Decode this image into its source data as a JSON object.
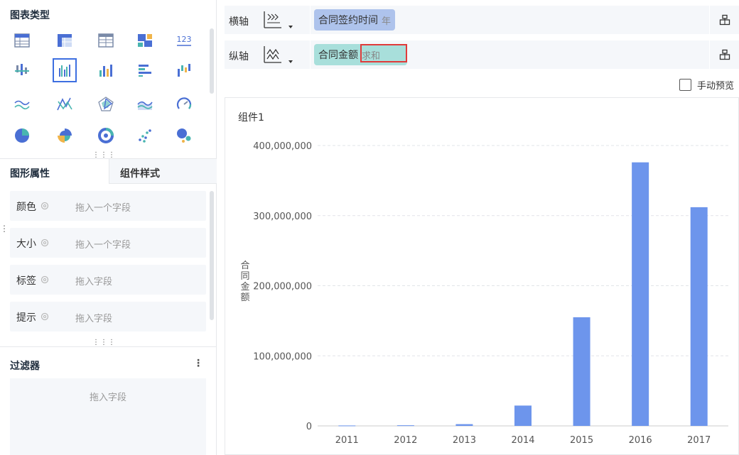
{
  "left": {
    "chart_types_title": "图表类型",
    "chart_types": [
      {
        "icon": "table-icon",
        "selected": false
      },
      {
        "icon": "cross-table-icon",
        "selected": false
      },
      {
        "icon": "detail-table-icon",
        "selected": false
      },
      {
        "icon": "kpi-block-icon",
        "selected": false
      },
      {
        "icon": "number-card-icon",
        "text": "123",
        "selected": false
      },
      {
        "icon": "floating-bar-icon",
        "selected": false
      },
      {
        "icon": "grouped-bar-icon",
        "selected": true
      },
      {
        "icon": "bar-chart-icon",
        "selected": false
      },
      {
        "icon": "horizontal-bar-icon",
        "selected": false
      },
      {
        "icon": "waterfall-icon",
        "selected": false
      },
      {
        "icon": "line-chart-icon",
        "selected": false
      },
      {
        "icon": "polyline-icon",
        "selected": false
      },
      {
        "icon": "radar-icon",
        "selected": false
      },
      {
        "icon": "area-chart-icon",
        "selected": false
      },
      {
        "icon": "gauge-icon",
        "selected": false
      },
      {
        "icon": "pie-chart-icon",
        "selected": false
      },
      {
        "icon": "rose-chart-icon",
        "selected": false
      },
      {
        "icon": "donut-chart-icon",
        "selected": false
      },
      {
        "icon": "scatter-icon",
        "selected": false
      },
      {
        "icon": "bubble-icon",
        "selected": false
      }
    ],
    "tabs": [
      {
        "label": "图形属性",
        "active": true
      },
      {
        "label": "组件样式",
        "active": false
      }
    ],
    "properties": [
      {
        "label": "颜色",
        "placeholder": "拖入一个字段"
      },
      {
        "label": "大小",
        "placeholder": "拖入一个字段"
      },
      {
        "label": "标签",
        "placeholder": "拖入字段"
      },
      {
        "label": "提示",
        "placeholder": "拖入字段"
      }
    ],
    "filter_title": "过滤器",
    "filter_placeholder": "拖入字段"
  },
  "axes": {
    "x": {
      "label": "横轴",
      "field": "合同签约时间",
      "sub": "年"
    },
    "y": {
      "label": "纵轴",
      "field": "合同金额",
      "sub": "求和"
    }
  },
  "preview_label": "手动预览",
  "component_title": "组件1",
  "colors": {
    "bar": "#6d95ec",
    "accent": "#3d6fe0",
    "pill_x": "#aec3ec",
    "pill_y": "#a8dfdb",
    "highlight": "#e03a3a"
  },
  "chart_data": {
    "type": "bar",
    "categories": [
      "2011",
      "2012",
      "2013",
      "2014",
      "2015",
      "2016",
      "2017"
    ],
    "values": [
      600000,
      900000,
      2500000,
      29000000,
      155000000,
      376000000,
      312000000
    ],
    "ylabel": "合同金额",
    "ylim": [
      0,
      400000000
    ],
    "yticks": [
      0,
      100000000,
      200000000,
      300000000,
      400000000
    ],
    "ytick_labels": [
      "0",
      "100,000,000",
      "200,000,000",
      "300,000,000",
      "400,000,000"
    ],
    "grid": true
  }
}
